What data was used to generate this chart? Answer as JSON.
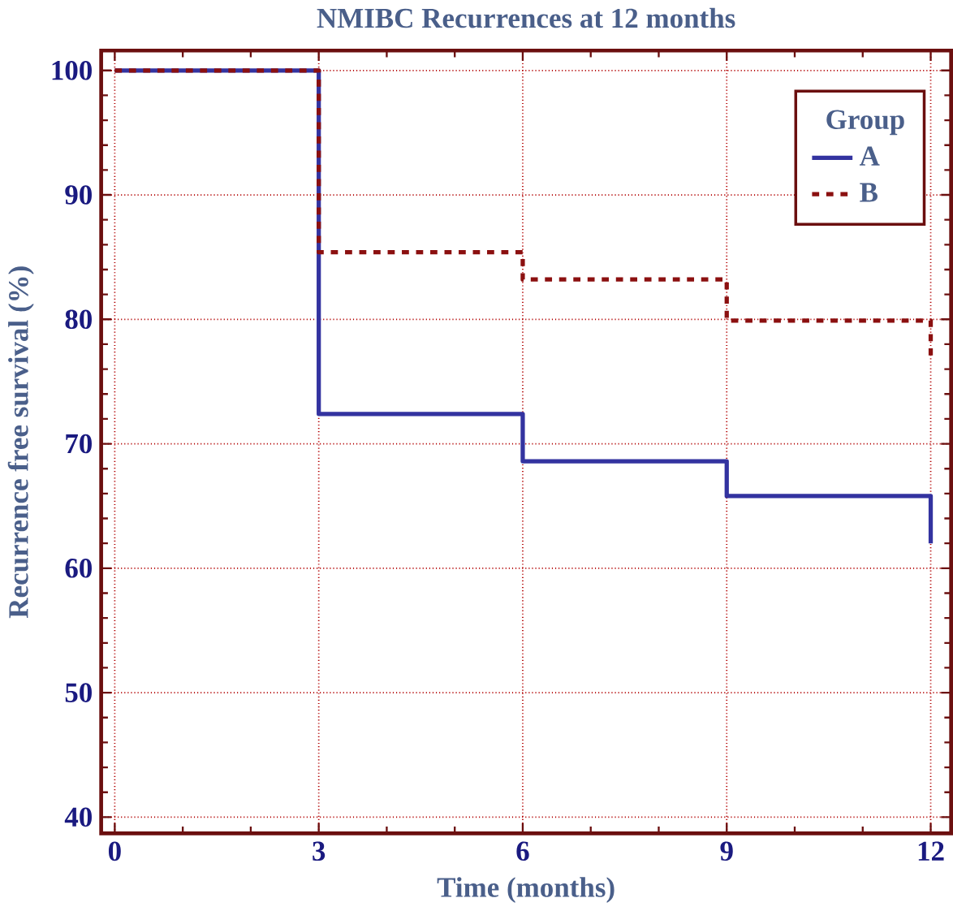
{
  "chart_data": {
    "type": "step",
    "title": "NMIBC Recurrences at 12 months",
    "xlabel": "Time (months)",
    "ylabel": "Recurrence free survival (%)",
    "legend_title": "Group",
    "series": [
      {
        "name": "A",
        "color": "#3333a0",
        "line_style": "solid",
        "x": [
          0,
          3,
          6,
          9,
          12
        ],
        "values": [
          100,
          72.4,
          68.6,
          65.8,
          62
        ]
      },
      {
        "name": "B",
        "color": "#8b1010",
        "line_style": "dashed",
        "x": [
          0,
          3,
          6,
          9,
          12
        ],
        "values": [
          100,
          85.4,
          83.2,
          79.9,
          76.6
        ]
      }
    ],
    "xlim": [
      -0.2,
      12.3
    ],
    "ylim": [
      38.7,
      101.6
    ],
    "xticks": [
      0,
      3,
      6,
      9,
      12
    ],
    "yticks": [
      40,
      50,
      60,
      70,
      80,
      90,
      100
    ],
    "grid": true,
    "legend": "top right"
  }
}
